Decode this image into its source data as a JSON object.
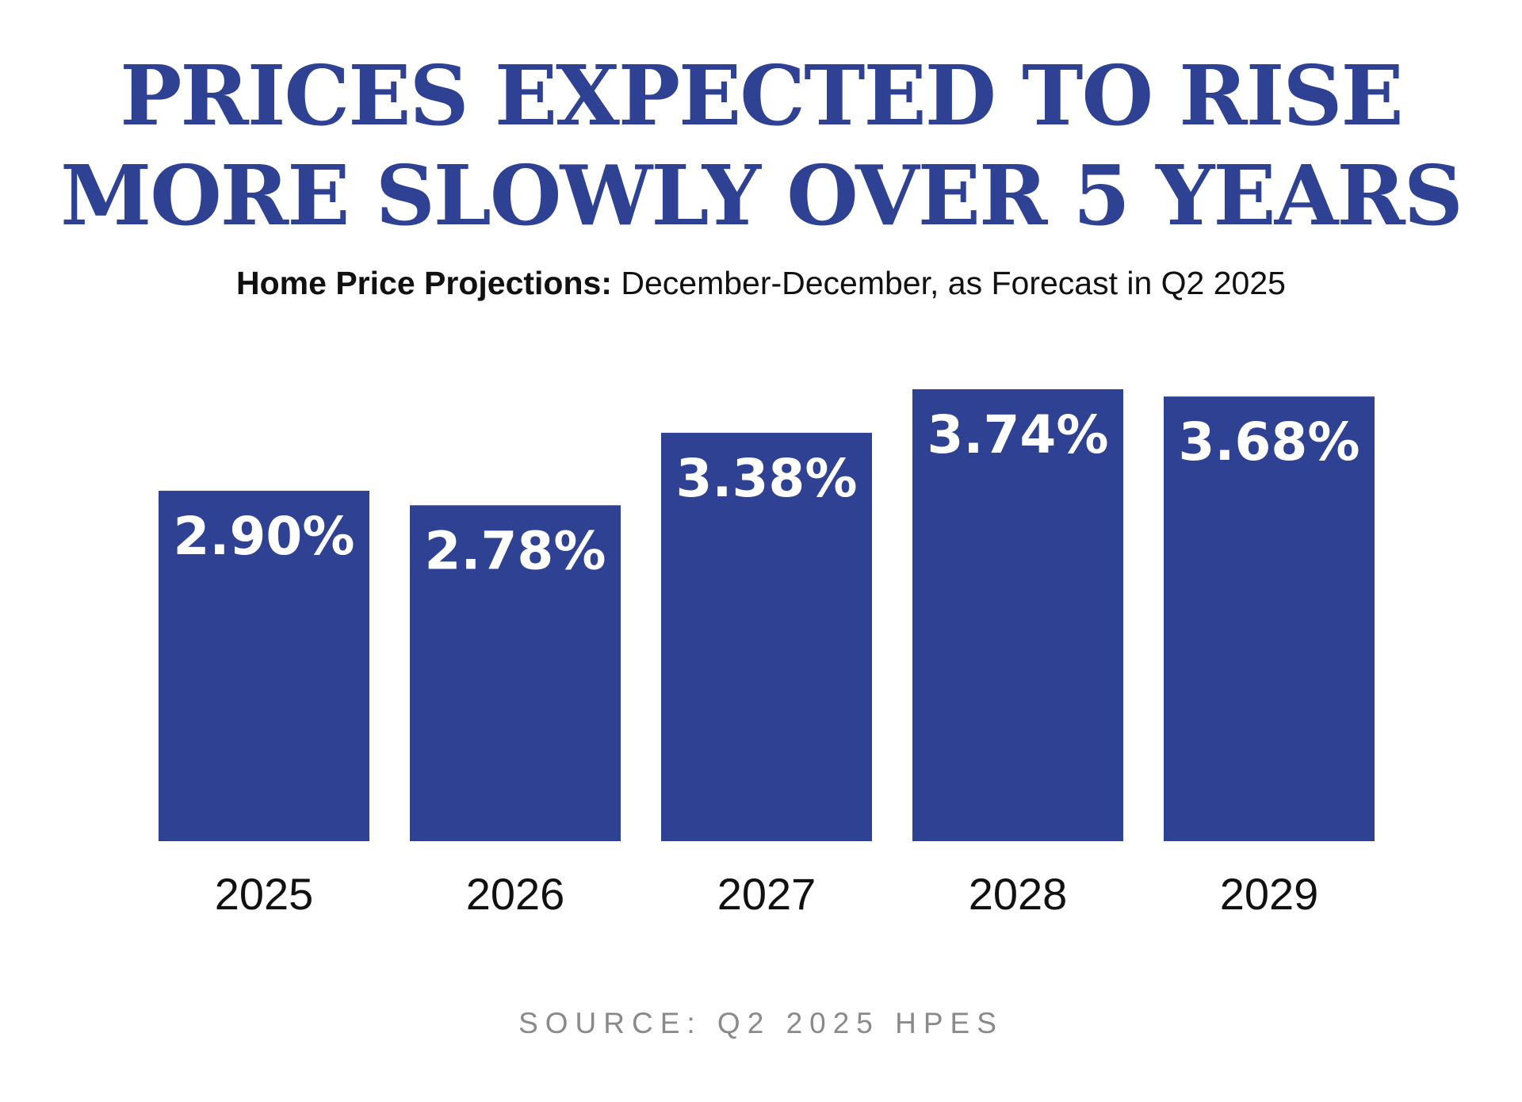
{
  "colors": {
    "title": "#2E4193",
    "bar": "#2E4193",
    "bar_label": "#FFFFFF",
    "text": "#111111",
    "source": "#8A8A8A"
  },
  "title_lines": [
    "PRICES EXPECTED TO RISE",
    "MORE SLOWLY OVER 5 YEARS"
  ],
  "subtitle": {
    "lead": "Home Price Projections:",
    "rest": "December-December, as Forecast in Q2 2025"
  },
  "source": "SOURCE: Q2 2025 HPES",
  "chart_data": {
    "type": "bar",
    "title": "PRICES EXPECTED TO RISE MORE SLOWLY OVER 5 YEARS",
    "subtitle": "Home Price Projections: December-December, as Forecast in Q2 2025",
    "categories": [
      "2025",
      "2026",
      "2027",
      "2028",
      "2029"
    ],
    "values": [
      2.9,
      2.78,
      3.38,
      3.74,
      3.68
    ],
    "value_labels": [
      "2.90%",
      "2.78%",
      "3.38%",
      "3.74%",
      "3.68%"
    ],
    "unit": "%",
    "xlabel": "",
    "ylabel": "",
    "ylim": [
      0,
      3.74
    ],
    "grid": false,
    "legend": "none",
    "label_position": "inside-top"
  }
}
